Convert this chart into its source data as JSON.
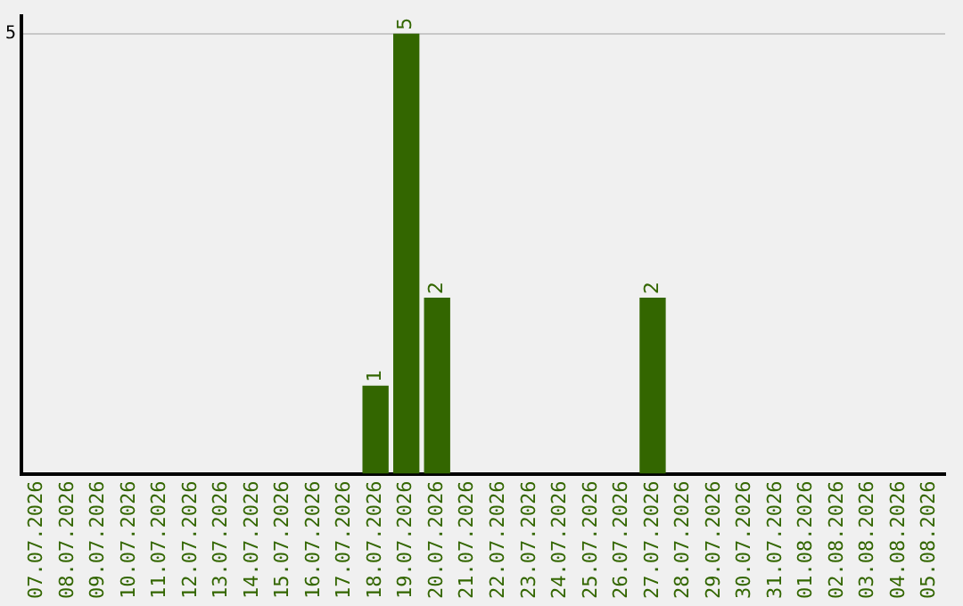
{
  "chart_data": {
    "type": "bar",
    "categories": [
      "07.07.2026",
      "08.07.2026",
      "09.07.2026",
      "10.07.2026",
      "11.07.2026",
      "12.07.2026",
      "13.07.2026",
      "14.07.2026",
      "15.07.2026",
      "16.07.2026",
      "17.07.2026",
      "18.07.2026",
      "19.07.2026",
      "20.07.2026",
      "21.07.2026",
      "22.07.2026",
      "23.07.2026",
      "24.07.2026",
      "25.07.2026",
      "26.07.2026",
      "27.07.2026",
      "28.07.2026",
      "29.07.2026",
      "30.07.2026",
      "31.07.2026",
      "01.08.2026",
      "02.08.2026",
      "03.08.2026",
      "04.08.2026",
      "05.08.2026"
    ],
    "values": [
      0,
      0,
      0,
      0,
      0,
      0,
      0,
      0,
      0,
      0,
      0,
      1,
      5,
      2,
      0,
      0,
      0,
      0,
      0,
      0,
      2,
      0,
      0,
      0,
      0,
      0,
      0,
      0,
      0,
      0
    ],
    "value_labels": [
      null,
      null,
      null,
      null,
      null,
      null,
      null,
      null,
      null,
      null,
      null,
      "1",
      "5",
      "2",
      null,
      null,
      null,
      null,
      null,
      null,
      "2",
      null,
      null,
      null,
      null,
      null,
      null,
      null,
      null,
      null
    ],
    "color": "#336600",
    "ylim": [
      0,
      5.2
    ],
    "yticks": [
      5
    ],
    "grid": "y",
    "legend": false
  }
}
